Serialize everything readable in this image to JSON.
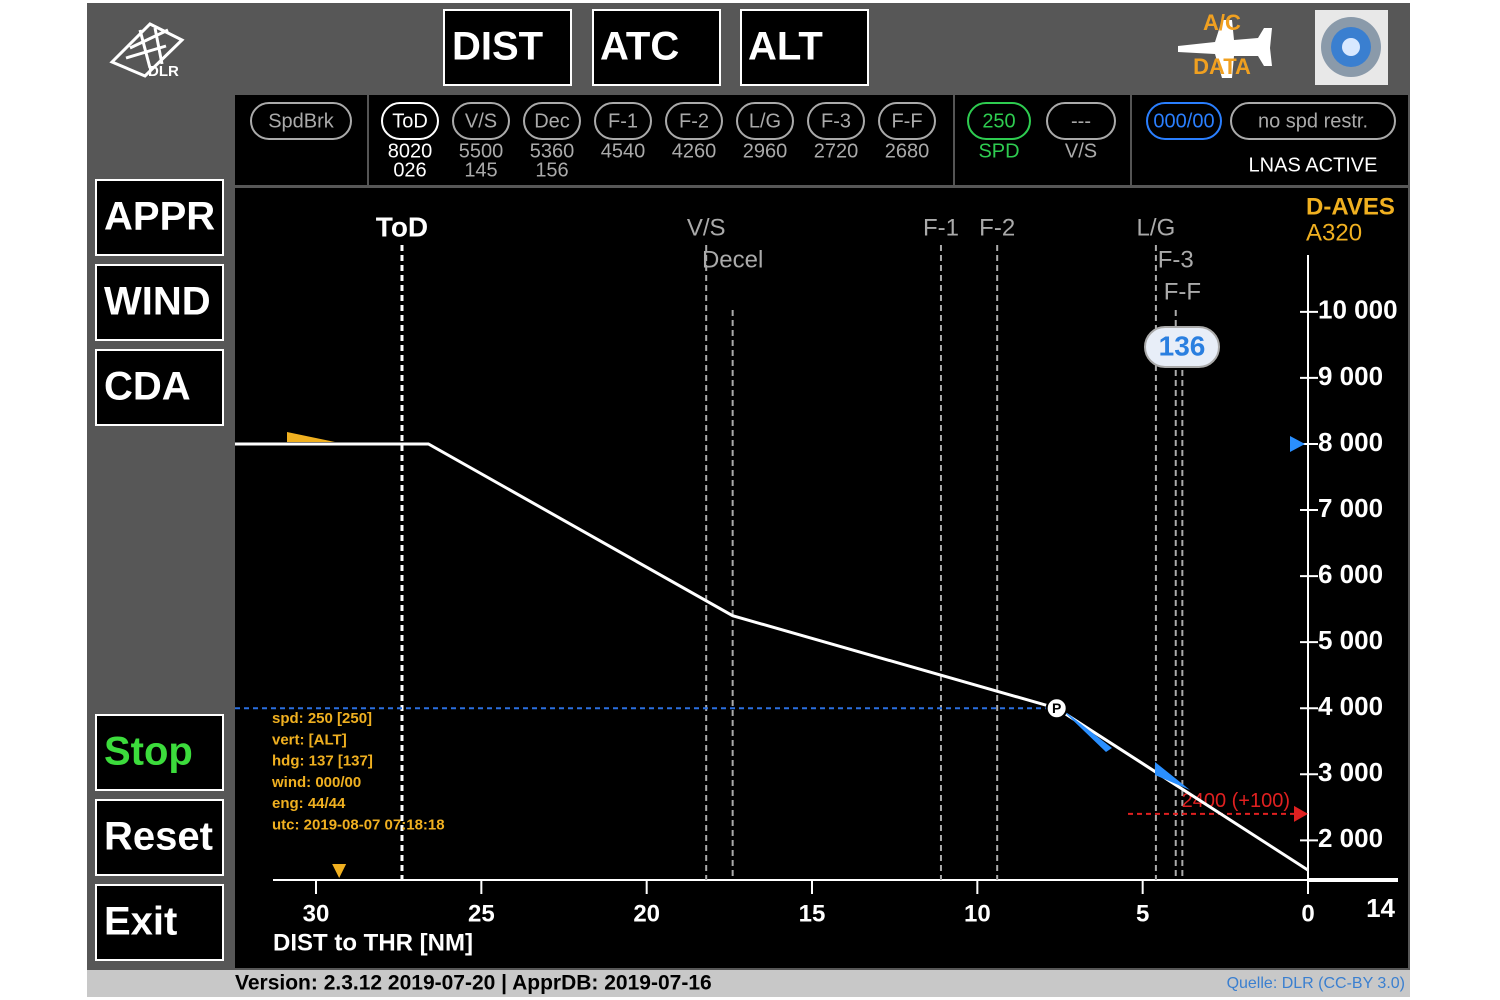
{
  "logo": "DLR",
  "top_buttons": [
    "DIST",
    "ATC",
    "ALT"
  ],
  "ac_data": [
    "A/C",
    "DATA"
  ],
  "side_buttons": [
    "APPR",
    "WIND",
    "CDA"
  ],
  "control_buttons": [
    "Stop",
    "Reset",
    "Exit"
  ],
  "status_bar": {
    "spdbrk": "SpdBrk",
    "waypoints": [
      {
        "label": "ToD",
        "alt": "8020",
        "dist": "026"
      },
      {
        "label": "V/S",
        "alt": "5500",
        "dist": "145"
      },
      {
        "label": "Dec",
        "alt": "5360",
        "dist": "156"
      },
      {
        "label": "F-1",
        "alt": "4540"
      },
      {
        "label": "F-2",
        "alt": "4260"
      },
      {
        "label": "L/G",
        "alt": "2960"
      },
      {
        "label": "F-3",
        "alt": "2720"
      },
      {
        "label": "F-F",
        "alt": "2680"
      }
    ],
    "speed": {
      "value": "250",
      "label": "SPD"
    },
    "vs": {
      "value": "---",
      "label": "V/S"
    },
    "wind": "000/00",
    "restriction": "no spd restr.",
    "mode": "LNAS ACTIVE"
  },
  "profile": {
    "callsign": "D-AVES",
    "aircraft": "A320",
    "xlabel": "DIST to THR [NM]",
    "xlim": [
      32.45,
      0
    ],
    "ylim": [
      1400,
      10860
    ],
    "xticks": [
      0,
      5,
      10,
      15,
      20,
      25,
      30
    ],
    "yticks": [
      {
        "value": 2000,
        "label": "2 000"
      },
      {
        "value": 3000,
        "label": "3 000"
      },
      {
        "value": 4000,
        "label": "4 000"
      },
      {
        "value": 5000,
        "label": "5 000"
      },
      {
        "value": 6000,
        "label": "6 000"
      },
      {
        "value": 7000,
        "label": "7 000"
      },
      {
        "value": 8000,
        "label": "8 000"
      },
      {
        "value": 9000,
        "label": "9 000"
      },
      {
        "value": 10000,
        "label": "10 000"
      }
    ],
    "markers": [
      {
        "label": "ToD",
        "dist": 27.4
      },
      {
        "label": "V/S",
        "dist": 18.2
      },
      {
        "label": "Decel",
        "dist": 17.4
      },
      {
        "label": "F-1",
        "dist": 11.1
      },
      {
        "label": "F-2",
        "dist": 9.4
      },
      {
        "label": "L/G",
        "dist": 4.6
      },
      {
        "label": "F-3",
        "dist": 4.0
      },
      {
        "label": "F-F",
        "dist": 3.8
      }
    ],
    "path": {
      "dist": [
        32.45,
        26.6,
        17.4,
        7.6,
        0
      ],
      "alt": [
        8000,
        8000,
        5400,
        4000,
        1550
      ]
    },
    "position": {
      "label": "P",
      "dist": 7.6,
      "alt": 4000
    },
    "target_altitude": 8000,
    "selected_altitude": 4000,
    "constraint": {
      "label": "2400 (+100)",
      "alt": 2400
    },
    "speed_bubble": "136",
    "yellow_marker": 29.3,
    "info": [
      "spd: 250 [250]",
      "vert: [ALT]",
      "hdg: 137 [137]",
      "wind: 000/00",
      "eng: 44/44",
      "utc: 2019-08-07 07:18:18"
    ],
    "range": "14"
  },
  "footer": {
    "version": "Version: 2.3.12 2019-07-20 | ApprDB: 2019-07-16",
    "credit": "Quelle: DLR (CC-BY 3.0)"
  }
}
